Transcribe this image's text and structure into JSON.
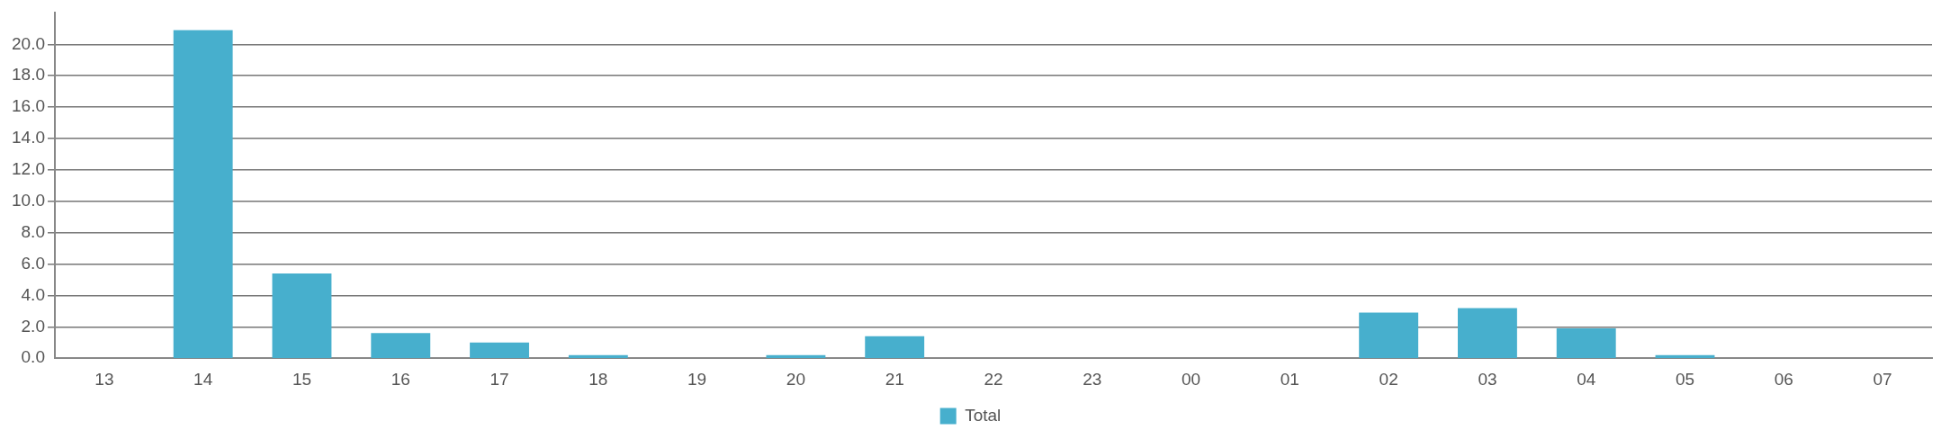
{
  "chart_data": {
    "type": "bar",
    "categories": [
      "13",
      "14",
      "15",
      "16",
      "17",
      "18",
      "19",
      "20",
      "21",
      "22",
      "23",
      "00",
      "01",
      "02",
      "03",
      "04",
      "05",
      "06",
      "07"
    ],
    "series": [
      {
        "name": "Total",
        "color": "#47afcd",
        "values": [
          0,
          20.9,
          5.4,
          1.6,
          1.0,
          0.2,
          0,
          0.2,
          1.4,
          0,
          0,
          0,
          0,
          2.9,
          3.2,
          1.9,
          0.2,
          0,
          0
        ]
      }
    ],
    "ylim": [
      0,
      22
    ],
    "yticks": [
      {
        "value": 0,
        "label": "0.0"
      },
      {
        "value": 2,
        "label": "2.0"
      },
      {
        "value": 4,
        "label": "4.0"
      },
      {
        "value": 6,
        "label": "6.0"
      },
      {
        "value": 8,
        "label": "8.0"
      },
      {
        "value": 10,
        "label": "10.0"
      },
      {
        "value": 12,
        "label": "12.0"
      },
      {
        "value": 14,
        "label": "14.0"
      },
      {
        "value": 16,
        "label": "16.0"
      },
      {
        "value": 18,
        "label": "18.0"
      },
      {
        "value": 20,
        "label": "20.0"
      }
    ],
    "grid": "y",
    "legend": "bottom"
  }
}
